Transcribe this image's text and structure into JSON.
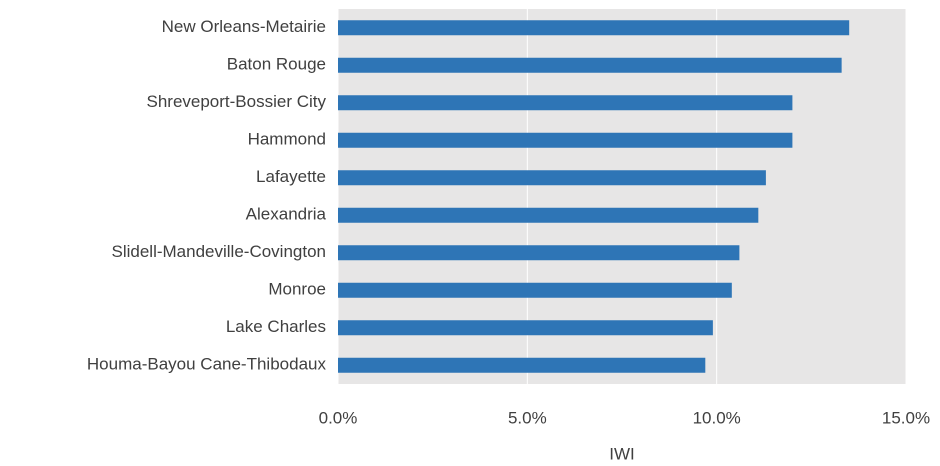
{
  "chart_data": {
    "type": "bar",
    "orientation": "horizontal",
    "categories": [
      "New Orleans-Metairie",
      "Baton Rouge",
      "Shreveport-Bossier City",
      "Hammond",
      "Lafayette",
      "Alexandria",
      "Slidell-Mandeville-Covington",
      "Monroe",
      "Lake Charles",
      "Houma-Bayou Cane-Thibodaux"
    ],
    "values": [
      13.5,
      13.3,
      12.0,
      12.0,
      11.3,
      11.1,
      10.6,
      10.4,
      9.9,
      9.7
    ],
    "color": "#2e75b6",
    "xlabel": "IWI",
    "xlim": [
      0,
      15
    ],
    "xticks": [
      {
        "value": 0,
        "label": "0.0%"
      },
      {
        "value": 5,
        "label": "5.0%"
      },
      {
        "value": 10,
        "label": "10.0%"
      },
      {
        "value": 15,
        "label": "15.0%"
      }
    ],
    "grid": true
  }
}
